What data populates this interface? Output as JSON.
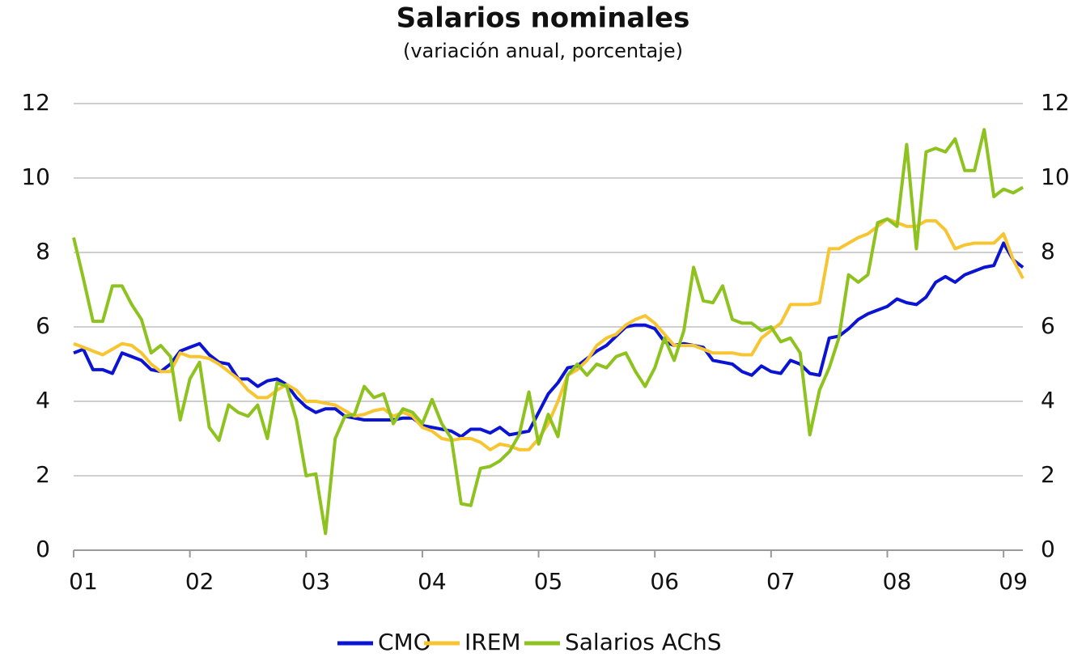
{
  "chart_data": {
    "type": "line",
    "title": "Salarios nominales",
    "subtitle": "(variación anual, porcentaje)",
    "categories": [
      "01",
      null,
      null,
      null,
      null,
      null,
      null,
      null,
      null,
      null,
      null,
      null,
      "02",
      null,
      null,
      null,
      null,
      null,
      null,
      null,
      null,
      null,
      null,
      null,
      "03",
      null,
      null,
      null,
      null,
      null,
      null,
      null,
      null,
      null,
      null,
      null,
      "04",
      null,
      null,
      null,
      null,
      null,
      null,
      null,
      null,
      null,
      null,
      null,
      "05",
      null,
      null,
      null,
      null,
      null,
      null,
      null,
      null,
      null,
      null,
      null,
      "06",
      null,
      null,
      null,
      null,
      null,
      null,
      null,
      null,
      null,
      null,
      null,
      "07",
      null,
      null,
      null,
      null,
      null,
      null,
      null,
      null,
      null,
      null,
      null,
      "08",
      null,
      null,
      null,
      null,
      null,
      null,
      null,
      null,
      null,
      null,
      null,
      "09",
      null,
      null
    ],
    "series": [
      {
        "name": "CMO",
        "color": "#0a14d2",
        "values": [
          5.3,
          5.4,
          4.85,
          4.85,
          4.75,
          5.3,
          5.2,
          5.1,
          4.85,
          4.8,
          5.0,
          5.35,
          5.45,
          5.55,
          5.25,
          5.05,
          5.0,
          4.6,
          4.6,
          4.4,
          4.55,
          4.6,
          4.45,
          4.1,
          3.85,
          3.7,
          3.8,
          3.8,
          3.6,
          3.55,
          3.5,
          3.5,
          3.5,
          3.5,
          3.55,
          3.55,
          3.35,
          3.3,
          3.25,
          3.2,
          3.05,
          3.25,
          3.25,
          3.15,
          3.3,
          3.1,
          3.15,
          3.2,
          3.7,
          4.2,
          4.5,
          4.9,
          4.95,
          5.15,
          5.35,
          5.5,
          5.75,
          6.0,
          6.05,
          6.05,
          5.95,
          5.6,
          5.5,
          5.55,
          5.5,
          5.45,
          5.1,
          5.05,
          5.0,
          4.8,
          4.7,
          4.95,
          4.8,
          4.75,
          5.1,
          5.0,
          4.75,
          4.7,
          5.7,
          5.75,
          5.95,
          6.2,
          6.35,
          6.45,
          6.55,
          6.75,
          6.65,
          6.6,
          6.8,
          7.2,
          7.35,
          7.2,
          7.4,
          7.5,
          7.6,
          7.65,
          8.25,
          7.8,
          7.6
        ]
      },
      {
        "name": "IREM",
        "color": "#f7c531",
        "values": [
          5.55,
          5.45,
          5.35,
          5.25,
          5.4,
          5.55,
          5.5,
          5.3,
          5.0,
          4.8,
          4.8,
          5.3,
          5.2,
          5.2,
          5.15,
          5.0,
          4.8,
          4.6,
          4.3,
          4.1,
          4.1,
          4.3,
          4.45,
          4.3,
          4.0,
          4.0,
          3.95,
          3.9,
          3.75,
          3.6,
          3.65,
          3.75,
          3.8,
          3.6,
          3.7,
          3.6,
          3.3,
          3.2,
          3.0,
          2.95,
          3.0,
          3.0,
          2.9,
          2.7,
          2.85,
          2.8,
          2.7,
          2.7,
          3.0,
          3.4,
          4.0,
          4.7,
          4.85,
          5.1,
          5.5,
          5.7,
          5.8,
          6.05,
          6.2,
          6.3,
          6.1,
          5.8,
          5.5,
          5.5,
          5.5,
          5.4,
          5.3,
          5.3,
          5.3,
          5.25,
          5.25,
          5.7,
          5.9,
          6.1,
          6.6,
          6.6,
          6.6,
          6.65,
          8.1,
          8.1,
          8.25,
          8.4,
          8.5,
          8.7,
          8.9,
          8.8,
          8.7,
          8.7,
          8.85,
          8.85,
          8.6,
          8.1,
          8.2,
          8.25,
          8.25,
          8.25,
          8.5,
          7.8,
          7.3
        ]
      },
      {
        "name": "Salarios AChS",
        "color": "#8dc21f",
        "values": [
          8.4,
          7.3,
          6.15,
          6.15,
          7.1,
          7.1,
          6.6,
          6.2,
          5.3,
          5.5,
          5.2,
          3.5,
          4.6,
          5.05,
          3.3,
          2.95,
          3.9,
          3.7,
          3.6,
          3.9,
          3.0,
          4.5,
          4.4,
          3.5,
          2.0,
          2.05,
          0.45,
          3.0,
          3.6,
          3.65,
          4.4,
          4.1,
          4.2,
          3.4,
          3.8,
          3.7,
          3.4,
          4.05,
          3.4,
          3.0,
          1.25,
          1.2,
          2.2,
          2.25,
          2.4,
          2.65,
          3.1,
          4.25,
          2.85,
          3.65,
          3.05,
          4.7,
          5.0,
          4.7,
          5.0,
          4.9,
          5.2,
          5.3,
          4.8,
          4.4,
          4.9,
          5.7,
          5.1,
          5.9,
          7.6,
          6.7,
          6.65,
          7.1,
          6.2,
          6.1,
          6.1,
          5.9,
          6.0,
          5.6,
          5.7,
          5.3,
          3.1,
          4.3,
          4.9,
          5.7,
          7.4,
          7.2,
          7.4,
          8.8,
          8.9,
          8.7,
          10.9,
          8.1,
          10.7,
          10.8,
          10.7,
          11.05,
          10.2,
          10.2,
          11.3,
          9.5,
          9.7,
          9.6,
          9.75
        ]
      }
    ],
    "ylim": [
      0,
      12
    ],
    "yticks": [
      0,
      2,
      4,
      6,
      8,
      10,
      12
    ],
    "y2lim": [
      0,
      12
    ],
    "y2ticks": [
      0,
      2,
      4,
      6,
      8,
      10,
      12
    ],
    "grid": true,
    "legend": "bottom"
  }
}
